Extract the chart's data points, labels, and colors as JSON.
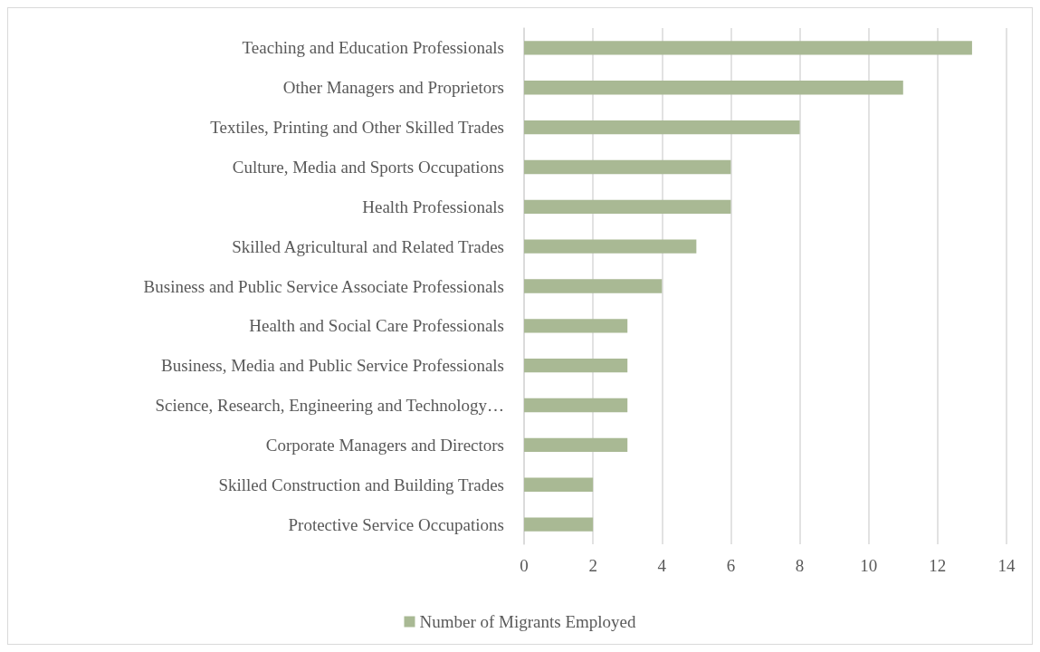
{
  "chart_data": {
    "type": "bar",
    "orientation": "horizontal",
    "categories": [
      "Teaching and Education Professionals",
      "Other Managers and Proprietors",
      "Textiles, Printing and Other Skilled Trades",
      "Culture, Media and Sports Occupations",
      "Health Professionals",
      "Skilled Agricultural and Related Trades",
      "Business and Public Service Associate Professionals",
      "Health and Social Care Professionals",
      "Business, Media and Public Service Professionals",
      "Science, Research, Engineering and Technology…",
      "Corporate Managers and Directors",
      "Skilled Construction and Building Trades",
      "Protective Service Occupations"
    ],
    "series": [
      {
        "name": "Number of Migrants Employed",
        "color": "#a9b994",
        "values": [
          13,
          11,
          8,
          6,
          6,
          5,
          4,
          3,
          3,
          3,
          3,
          2,
          2
        ]
      }
    ],
    "xlim": [
      0,
      14
    ],
    "xticks": [
      0,
      2,
      4,
      6,
      8,
      10,
      12,
      14
    ],
    "grid": "x",
    "legend": "bottom"
  }
}
